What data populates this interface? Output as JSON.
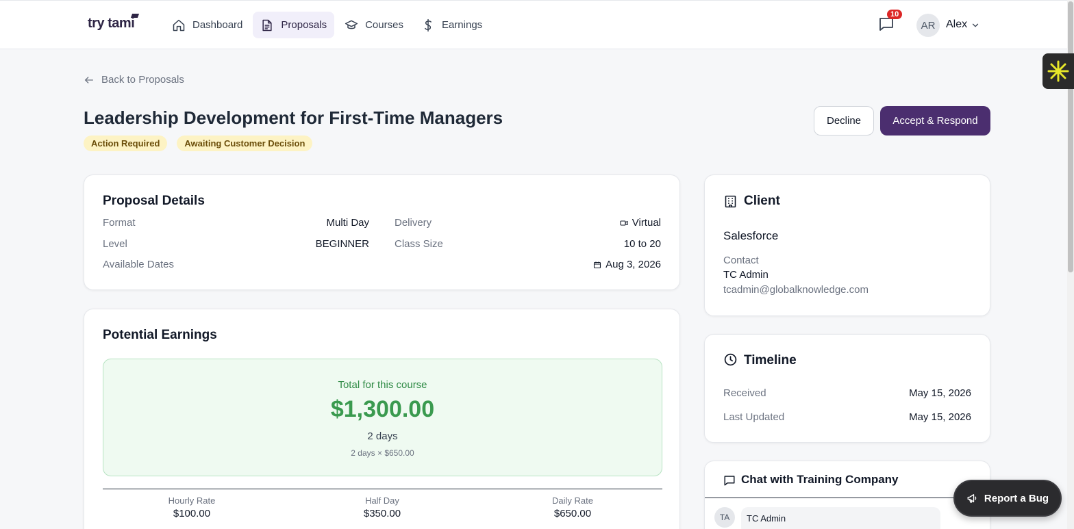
{
  "app": {
    "logo": "try tami"
  },
  "nav": [
    {
      "label": "Dashboard",
      "icon": "home-icon"
    },
    {
      "label": "Proposals",
      "icon": "document-icon"
    },
    {
      "label": "Courses",
      "icon": "graduation-cap-icon"
    },
    {
      "label": "Earnings",
      "icon": "dollar-icon"
    }
  ],
  "header": {
    "notifications": "10",
    "avatar_initials": "AR",
    "user_name": "Alex"
  },
  "page": {
    "back_label": "Back to Proposals",
    "title": "Leadership Development for First-Time Managers",
    "tags": [
      "Action Required",
      "Awaiting Customer Decision"
    ],
    "decline_label": "Decline",
    "accept_label": "Accept & Respond"
  },
  "proposal_details": {
    "title": "Proposal Details",
    "format_label": "Format",
    "format_value": "Multi Day",
    "delivery_label": "Delivery",
    "delivery_value": "Virtual",
    "level_label": "Level",
    "level_value": "BEGINNER",
    "class_size_label": "Class Size",
    "class_size_value": "10 to 20",
    "dates_label": "Available Dates",
    "dates_value": "Aug 3, 2026"
  },
  "earnings": {
    "title": "Potential Earnings",
    "total_label": "Total for this course",
    "total_value": "$1,300.00",
    "days": "2 days",
    "calc": "2 days × $650.00",
    "rates": [
      {
        "label": "Hourly Rate",
        "value": "$100.00"
      },
      {
        "label": "Half Day",
        "value": "$350.00"
      },
      {
        "label": "Daily Rate",
        "value": "$650.00"
      }
    ]
  },
  "client": {
    "title": "Client",
    "company": "Salesforce",
    "contact_label": "Contact",
    "contact_name": "TC Admin",
    "contact_email": "tcadmin@globalknowledge.com"
  },
  "timeline": {
    "title": "Timeline",
    "received_label": "Received",
    "received_value": "May 15, 2026",
    "updated_label": "Last Updated",
    "updated_value": "May 15, 2026"
  },
  "chat": {
    "title": "Chat with Training Company",
    "sender_initials": "TA",
    "sender_name": "TC Admin"
  },
  "report_bug": {
    "label": "Report a Bug"
  },
  "colors": {
    "accent": "#4b2e6f",
    "earnings_green": "#3a9a4f",
    "tag_bg": "#fdf3c4",
    "badge_red": "#dc2626"
  }
}
